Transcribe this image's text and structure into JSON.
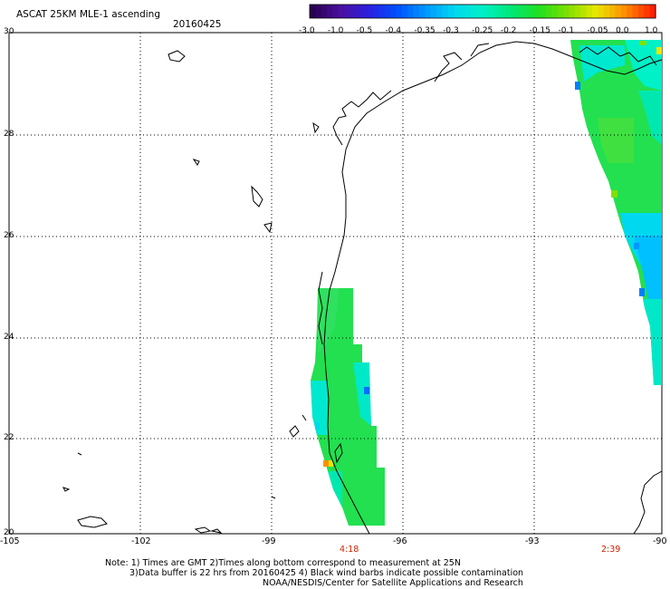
{
  "header": {
    "title": "ASCAT 25KM MLE-1 ascending",
    "date": "20160425"
  },
  "colorbar": {
    "labels": [
      "-3.0",
      "-1.0",
      "-0.5",
      "-0.4",
      "-0.35",
      "-0.3",
      "-0.25",
      "-0.2",
      "-0.15",
      "-0.1",
      "-0.05",
      "0.0",
      "1.0"
    ],
    "colors": [
      "#2a0050",
      "#4a10a0",
      "#2a20e0",
      "#0050ff",
      "#0098ff",
      "#00d8f0",
      "#00f0c8",
      "#00e878",
      "#20e020",
      "#80e000",
      "#e8e800",
      "#ff9000",
      "#ff2000"
    ]
  },
  "axes": {
    "lat_labels": [
      "30",
      "28",
      "26",
      "24",
      "22",
      "20"
    ],
    "lon_labels": [
      "-105",
      "-102",
      "-99",
      "-96",
      "-93",
      "-90"
    ]
  },
  "overpass_times": [
    "4:18",
    "2:39"
  ],
  "notes": {
    "line1": "Note: 1) Times are GMT 2)Times along bottom correspond to measurement at 25N",
    "line2": "3)Data buffer is 22 hrs from 20160425 4) Black wind barbs indicate possible contamination",
    "line3": "NOAA/NESDIS/Center for Satellite Applications and Research"
  },
  "colors": {
    "time_label": "#cc2200",
    "swath_green": "#22e050",
    "swath_cyan": "#00e8d0",
    "swath_blue": "#0080ff"
  }
}
